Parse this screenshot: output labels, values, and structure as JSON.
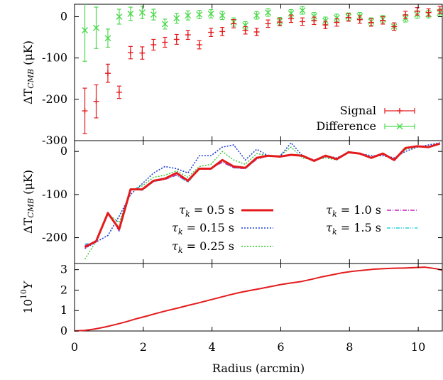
{
  "xaxis": {
    "label": "Radius (arcmin)",
    "lim": [
      0,
      10.7
    ],
    "ticks": [
      0,
      2,
      4,
      6,
      8,
      10
    ],
    "tick_labels": [
      "0",
      "2",
      "4",
      "6",
      "8",
      "10"
    ]
  },
  "colors": {
    "signal": "#e41a1c",
    "difference": "#4dd94d",
    "tau_0_5": "#e41a1c",
    "tau_0_15": "#1f3ed8",
    "tau_0_25": "#2fc42f",
    "tau_1_0": "#c020c0",
    "tau_1_5": "#20d0e0"
  },
  "chart_data": [
    {
      "type": "scatter",
      "panel": "top",
      "ylabel": "ΔT_CMB (μK)",
      "ylim": [
        -300,
        30
      ],
      "yticks": [
        0,
        -100,
        -200,
        -300
      ],
      "ytick_labels": [
        "0",
        "-100",
        "-200",
        "-300"
      ],
      "legend_position": "bottom-right",
      "x": [
        0.3,
        0.63,
        0.97,
        1.3,
        1.63,
        1.97,
        2.3,
        2.63,
        2.97,
        3.3,
        3.63,
        3.97,
        4.3,
        4.63,
        4.97,
        5.3,
        5.63,
        5.97,
        6.3,
        6.63,
        6.97,
        7.3,
        7.63,
        7.97,
        8.3,
        8.63,
        8.97,
        9.3,
        9.63,
        9.97,
        10.3,
        10.63
      ],
      "series": [
        {
          "name": "Signal",
          "color_key": "signal",
          "marker": "plus",
          "values": [
            -228,
            -205,
            -137,
            -183,
            -87,
            -88,
            -68,
            -62,
            -55,
            -44,
            -68,
            -38,
            -36,
            -17,
            -33,
            -37,
            -17,
            -13,
            -5,
            -12,
            -10,
            -20,
            -14,
            -2,
            -7,
            -14,
            -9,
            -24,
            4,
            13,
            10,
            16
          ],
          "errors": [
            55,
            40,
            22,
            15,
            15,
            15,
            13,
            12,
            12,
            11,
            10,
            10,
            10,
            10,
            9,
            9,
            9,
            9,
            9,
            9,
            9,
            9,
            9,
            9,
            9,
            9,
            9,
            9,
            9,
            9,
            9,
            9
          ]
        },
        {
          "name": "Difference",
          "color_key": "difference",
          "marker": "cross",
          "values": [
            -33,
            -27,
            -52,
            0,
            7,
            10,
            5,
            -18,
            -4,
            3,
            5,
            7,
            3,
            -13,
            -21,
            3,
            10,
            -11,
            8,
            15,
            1,
            -10,
            -3,
            0,
            1,
            -12,
            -6,
            -24,
            -4,
            5,
            6,
            9
          ],
          "errors": [
            75,
            50,
            22,
            18,
            16,
            15,
            13,
            12,
            12,
            11,
            10,
            10,
            10,
            10,
            9,
            9,
            9,
            9,
            9,
            9,
            9,
            9,
            9,
            9,
            9,
            9,
            9,
            9,
            9,
            9,
            9,
            9
          ]
        }
      ]
    },
    {
      "type": "line",
      "panel": "middle",
      "ylabel": "ΔT_CMB (μK)",
      "ylim": [
        -260,
        25
      ],
      "yticks": [
        0,
        -100,
        -200
      ],
      "ytick_labels": [
        "0",
        "-100",
        "-200"
      ],
      "legend_position": "bottom-right",
      "x": [
        0.3,
        0.63,
        0.97,
        1.3,
        1.63,
        1.97,
        2.3,
        2.63,
        2.97,
        3.3,
        3.63,
        3.97,
        4.3,
        4.63,
        4.97,
        5.3,
        5.63,
        5.97,
        6.3,
        6.63,
        6.97,
        7.3,
        7.63,
        7.97,
        8.3,
        8.63,
        8.97,
        9.3,
        9.63,
        9.97,
        10.3,
        10.63
      ],
      "series": [
        {
          "name": "τk = 0.5 s",
          "label_sym": "τ",
          "label_sub": "k",
          "label_rest": " = 0.5 s",
          "color_key": "tau_0_5",
          "dash": "solid",
          "width": 3,
          "values": [
            -222,
            -208,
            -143,
            -180,
            -88,
            -88,
            -68,
            -63,
            -50,
            -68,
            -40,
            -40,
            -20,
            -35,
            -38,
            -15,
            -10,
            -12,
            -8,
            -10,
            -22,
            -10,
            -18,
            -2,
            -5,
            -15,
            -5,
            -20,
            8,
            12,
            10,
            18
          ]
        },
        {
          "name": "τk = 0.15 s",
          "label_sym": "τ",
          "label_sub": "k",
          "label_rest": " = 0.15 s",
          "color_key": "tau_0_15",
          "dash": "dotted",
          "width": 1.6,
          "values": [
            -225,
            -210,
            -195,
            -150,
            -100,
            -75,
            -50,
            -35,
            -40,
            -50,
            -10,
            -10,
            10,
            15,
            -20,
            5,
            -10,
            -12,
            20,
            -10,
            -20,
            -10,
            -15,
            -2,
            -5,
            -10,
            -10,
            -15,
            0,
            10,
            15,
            20
          ]
        },
        {
          "name": "τk = 0.25 s",
          "label_sym": "τ",
          "label_sub": "k",
          "label_rest": " = 0.25 s",
          "color_key": "tau_0_25",
          "dash": "dotted",
          "width": 1.4,
          "values": [
            -250,
            -208,
            -145,
            -165,
            -90,
            -80,
            -60,
            -55,
            -45,
            -60,
            -35,
            -30,
            0,
            -20,
            -30,
            -5,
            -10,
            -10,
            10,
            -15,
            -20,
            -15,
            -20,
            0,
            -5,
            -15,
            -5,
            -20,
            5,
            10,
            10,
            18
          ]
        },
        {
          "name": "τk = 1.0 s",
          "label_sym": "τ",
          "label_sub": "k",
          "label_rest": " = 1.0 s",
          "color_key": "tau_1_0",
          "dash": "dashdot",
          "width": 1.4,
          "values": [
            -218,
            -210,
            -140,
            -185,
            -87,
            -90,
            -70,
            -65,
            -55,
            -70,
            -40,
            -40,
            -25,
            -38,
            -40,
            -18,
            -10,
            -12,
            -8,
            -10,
            -22,
            -12,
            -18,
            -2,
            -5,
            -15,
            -5,
            -20,
            8,
            12,
            10,
            18
          ]
        },
        {
          "name": "τk = 1.5 s",
          "label_sym": "τ",
          "label_sub": "k",
          "label_rest": " = 1.5 s",
          "color_key": "tau_1_5",
          "dash": "dashdotdot",
          "width": 1.4,
          "values": [
            -215,
            -210,
            -140,
            -185,
            -88,
            -90,
            -70,
            -65,
            -55,
            -72,
            -40,
            -40,
            -25,
            -38,
            -40,
            -18,
            -10,
            -12,
            -8,
            -10,
            -22,
            -12,
            -18,
            -2,
            -5,
            -15,
            -5,
            -20,
            8,
            12,
            10,
            18
          ]
        }
      ]
    },
    {
      "type": "line",
      "panel": "bottom",
      "ylabel": "10^10 Y",
      "ylim": [
        0,
        3.3
      ],
      "yticks": [
        0,
        1,
        2,
        3
      ],
      "ytick_labels": [
        "0",
        "1",
        "2",
        "3"
      ],
      "x": [
        0,
        0.3,
        0.6,
        0.9,
        1.2,
        1.5,
        1.8,
        2.1,
        2.4,
        2.7,
        3.0,
        3.3,
        3.6,
        3.9,
        4.2,
        4.5,
        4.8,
        5.1,
        5.4,
        5.7,
        6.0,
        6.3,
        6.6,
        6.9,
        7.2,
        7.5,
        7.8,
        8.1,
        8.4,
        8.7,
        9.0,
        9.3,
        9.6,
        9.9,
        10.2,
        10.5,
        10.7
      ],
      "series": [
        {
          "color_key": "signal",
          "values": [
            0,
            0.03,
            0.1,
            0.2,
            0.32,
            0.45,
            0.6,
            0.73,
            0.87,
            1.0,
            1.12,
            1.25,
            1.37,
            1.5,
            1.63,
            1.76,
            1.88,
            1.98,
            2.07,
            2.17,
            2.27,
            2.35,
            2.42,
            2.53,
            2.65,
            2.75,
            2.85,
            2.92,
            2.97,
            3.02,
            3.05,
            3.07,
            3.08,
            3.1,
            3.12,
            3.05,
            2.98
          ]
        }
      ]
    }
  ]
}
